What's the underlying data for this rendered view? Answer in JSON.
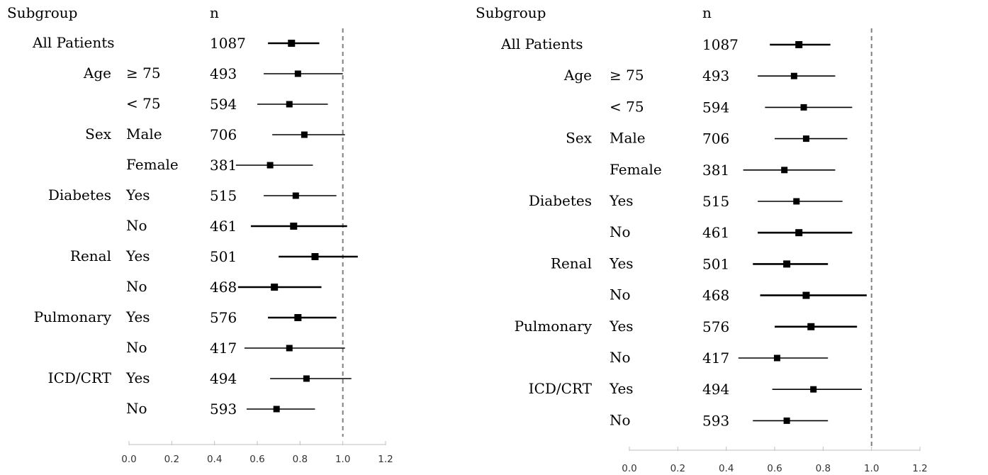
{
  "chart_data": [
    {
      "type": "forest",
      "header_subgroup": "Subgroup",
      "header_n": "n",
      "reference_value": 1.0,
      "xlim": [
        0.0,
        1.2
      ],
      "xticks": [
        "0.0",
        "0.2",
        "0.4",
        "0.6",
        "0.8",
        "1.0",
        "1.2"
      ],
      "grid": false,
      "rows": [
        {
          "group": "All Patients",
          "level": "",
          "n": "1087",
          "estimate": 0.76,
          "lower": 0.65,
          "upper": 0.89,
          "bold": true
        },
        {
          "group": "Age",
          "level": "≥ 75",
          "n": "493",
          "estimate": 0.79,
          "lower": 0.63,
          "upper": 1.0,
          "bold": false
        },
        {
          "group": "",
          "level": "< 75",
          "n": "594",
          "estimate": 0.75,
          "lower": 0.6,
          "upper": 0.93,
          "bold": false
        },
        {
          "group": "Sex",
          "level": "Male",
          "n": "706",
          "estimate": 0.82,
          "lower": 0.67,
          "upper": 1.01,
          "bold": false
        },
        {
          "group": "",
          "level": "Female",
          "n": "381",
          "estimate": 0.66,
          "lower": 0.5,
          "upper": 0.86,
          "bold": false
        },
        {
          "group": "Diabetes",
          "level": "Yes",
          "n": "515",
          "estimate": 0.78,
          "lower": 0.63,
          "upper": 0.97,
          "bold": false
        },
        {
          "group": "",
          "level": "No",
          "n": "461",
          "estimate": 0.77,
          "lower": 0.57,
          "upper": 1.02,
          "bold": true
        },
        {
          "group": "Renal",
          "level": "Yes",
          "n": "501",
          "estimate": 0.87,
          "lower": 0.7,
          "upper": 1.07,
          "bold": true
        },
        {
          "group": "",
          "level": "No",
          "n": "468",
          "estimate": 0.68,
          "lower": 0.51,
          "upper": 0.9,
          "bold": true
        },
        {
          "group": "Pulmonary",
          "level": "Yes",
          "n": "576",
          "estimate": 0.79,
          "lower": 0.65,
          "upper": 0.97,
          "bold": true
        },
        {
          "group": "",
          "level": "No",
          "n": "417",
          "estimate": 0.75,
          "lower": 0.54,
          "upper": 1.01,
          "bold": false
        },
        {
          "group": "ICD/CRT",
          "level": "Yes",
          "n": "494",
          "estimate": 0.83,
          "lower": 0.66,
          "upper": 1.04,
          "bold": false
        },
        {
          "group": "",
          "level": "No",
          "n": "593",
          "estimate": 0.69,
          "lower": 0.55,
          "upper": 0.87,
          "bold": false
        }
      ]
    },
    {
      "type": "forest",
      "header_subgroup": "Subgroup",
      "header_n": "n",
      "reference_value": 1.0,
      "xlim": [
        0.0,
        1.2
      ],
      "xticks": [
        "0.0",
        "0.2",
        "0.4",
        "0.6",
        "0.8",
        "1.0",
        "1.2"
      ],
      "grid": false,
      "rows": [
        {
          "group": "All Patients",
          "level": "",
          "n": "1087",
          "estimate": 0.7,
          "lower": 0.58,
          "upper": 0.83,
          "bold": true
        },
        {
          "group": "Age",
          "level": "≥ 75",
          "n": "493",
          "estimate": 0.68,
          "lower": 0.53,
          "upper": 0.85,
          "bold": false
        },
        {
          "group": "",
          "level": "< 75",
          "n": "594",
          "estimate": 0.72,
          "lower": 0.56,
          "upper": 0.92,
          "bold": false
        },
        {
          "group": "Sex",
          "level": "Male",
          "n": "706",
          "estimate": 0.73,
          "lower": 0.6,
          "upper": 0.9,
          "bold": false
        },
        {
          "group": "",
          "level": "Female",
          "n": "381",
          "estimate": 0.64,
          "lower": 0.47,
          "upper": 0.85,
          "bold": false
        },
        {
          "group": "Diabetes",
          "level": "Yes",
          "n": "515",
          "estimate": 0.69,
          "lower": 0.53,
          "upper": 0.88,
          "bold": false
        },
        {
          "group": "",
          "level": "No",
          "n": "461",
          "estimate": 0.7,
          "lower": 0.53,
          "upper": 0.92,
          "bold": true
        },
        {
          "group": "Renal",
          "level": "Yes",
          "n": "501",
          "estimate": 0.65,
          "lower": 0.51,
          "upper": 0.82,
          "bold": true
        },
        {
          "group": "",
          "level": "No",
          "n": "468",
          "estimate": 0.73,
          "lower": 0.54,
          "upper": 0.98,
          "bold": true
        },
        {
          "group": "Pulmonary",
          "level": "Yes",
          "n": "576",
          "estimate": 0.75,
          "lower": 0.6,
          "upper": 0.94,
          "bold": true
        },
        {
          "group": "",
          "level": "No",
          "n": "417",
          "estimate": 0.61,
          "lower": 0.45,
          "upper": 0.82,
          "bold": false
        },
        {
          "group": "ICD/CRT",
          "level": "Yes",
          "n": "494",
          "estimate": 0.76,
          "lower": 0.59,
          "upper": 0.96,
          "bold": false
        },
        {
          "group": "",
          "level": "No",
          "n": "593",
          "estimate": 0.65,
          "lower": 0.51,
          "upper": 0.82,
          "bold": false
        }
      ]
    }
  ]
}
